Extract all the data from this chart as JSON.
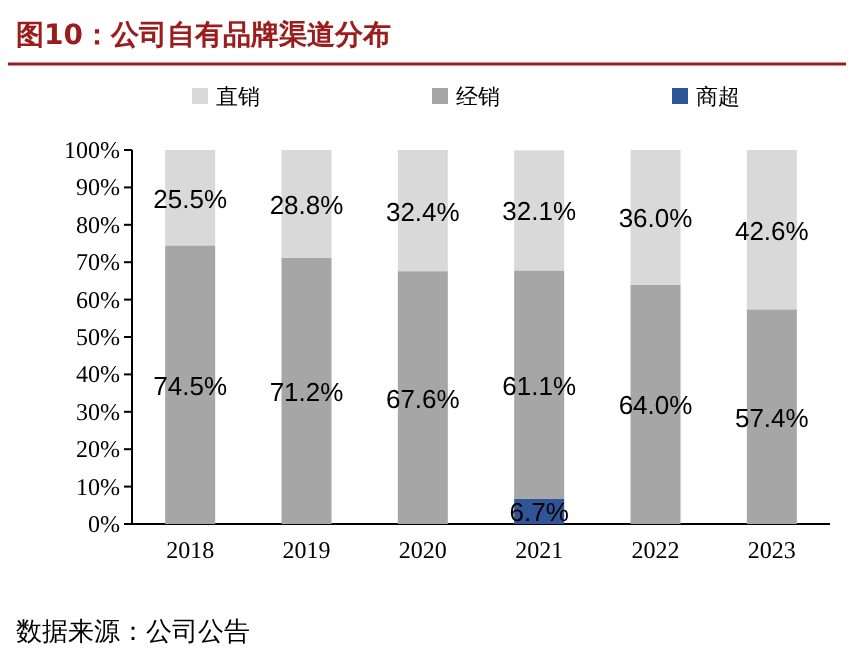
{
  "chart_data": {
    "type": "bar",
    "stacked": true,
    "title": "图10：公司自有品牌渠道分布",
    "categories": [
      "2018",
      "2019",
      "2020",
      "2021",
      "2022",
      "2023"
    ],
    "series": [
      {
        "name": "商超",
        "color": "#2f5597",
        "values": [
          null,
          null,
          null,
          6.7,
          null,
          null
        ],
        "value_labels": [
          null,
          null,
          null,
          "6.7%",
          null,
          null
        ]
      },
      {
        "name": "经销",
        "color": "#a6a6a6",
        "values": [
          74.5,
          71.2,
          67.6,
          61.1,
          64.0,
          57.4
        ],
        "value_labels": [
          "74.5%",
          "71.2%",
          "67.6%",
          "61.1%",
          "64.0%",
          "57.4%"
        ]
      },
      {
        "name": "直销",
        "color": "#d9d9d9",
        "values": [
          25.5,
          28.8,
          32.4,
          32.1,
          36.0,
          42.6
        ],
        "value_labels": [
          "25.5%",
          "28.8%",
          "32.4%",
          "32.1%",
          "36.0%",
          "42.6%"
        ]
      }
    ],
    "ylim": [
      0,
      100
    ],
    "yticks": [
      {
        "value": 0,
        "label": "0%"
      },
      {
        "value": 10,
        "label": "10%"
      },
      {
        "value": 20,
        "label": "20%"
      },
      {
        "value": 30,
        "label": "30%"
      },
      {
        "value": 40,
        "label": "40%"
      },
      {
        "value": 50,
        "label": "50%"
      },
      {
        "value": 60,
        "label": "60%"
      },
      {
        "value": 70,
        "label": "70%"
      },
      {
        "value": 80,
        "label": "80%"
      },
      {
        "value": 90,
        "label": "90%"
      },
      {
        "value": 100,
        "label": "100%"
      }
    ],
    "legend": "top",
    "grid": false,
    "annotations": [
      "数据来源：公司公告"
    ]
  }
}
